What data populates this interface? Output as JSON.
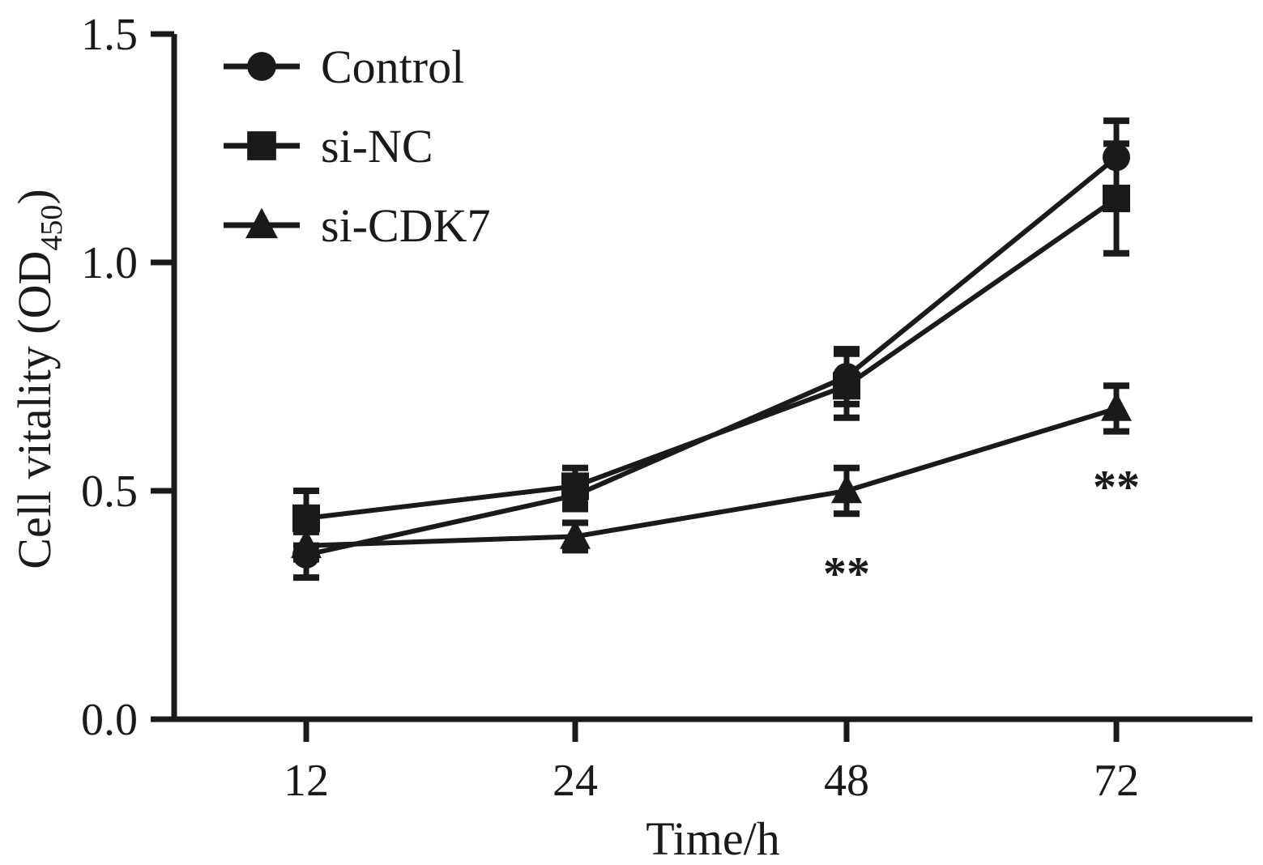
{
  "chart_data": {
    "type": "line",
    "x": [
      12,
      24,
      48,
      72
    ],
    "x_tick_labels": [
      "12",
      "24",
      "48",
      "72"
    ],
    "xlabel": "Time/h",
    "ylabel": "Cell vitality (OD",
    "ylabel_subscript": "450",
    "ylabel_close": ")",
    "ylim": [
      0.0,
      1.5
    ],
    "y_ticks": [
      0.0,
      0.5,
      1.0,
      1.5
    ],
    "y_tick_labels": [
      "0.0",
      "0.5",
      "1.0",
      "1.5"
    ],
    "grid": false,
    "legend_position": "top-left",
    "series": [
      {
        "name": "Control",
        "marker": "circle",
        "values": [
          0.36,
          0.49,
          0.75,
          1.23
        ],
        "errors": [
          0.05,
          0.03,
          0.06,
          0.08
        ]
      },
      {
        "name": "si-NC",
        "marker": "square",
        "values": [
          0.44,
          0.51,
          0.73,
          1.14
        ],
        "errors": [
          0.06,
          0.04,
          0.07,
          0.12
        ]
      },
      {
        "name": "si-CDK7",
        "marker": "triangle",
        "values": [
          0.38,
          0.4,
          0.5,
          0.68
        ],
        "errors": [
          0.03,
          0.03,
          0.05,
          0.05
        ]
      }
    ],
    "annotations": [
      {
        "x": 48,
        "y": 0.32,
        "text": "**"
      },
      {
        "x": 72,
        "y": 0.51,
        "text": "**"
      }
    ]
  }
}
